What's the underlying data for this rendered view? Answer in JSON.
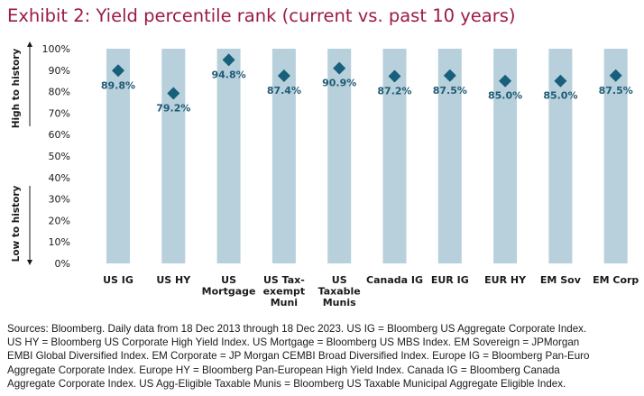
{
  "title": "Exhibit 2: Yield percentile rank (current vs. past 10 years)",
  "colors": {
    "title": "#9b1b42",
    "bar": "#b7d0dc",
    "marker": "#175f7a",
    "label": "#1f5a74"
  },
  "chart_data": {
    "type": "bar",
    "title": "Exhibit 2: Yield percentile rank (current vs. past 10 years)",
    "categories": [
      [
        "US IG"
      ],
      [
        "US HY"
      ],
      [
        "US",
        "Mortgage"
      ],
      [
        "US Tax-",
        "exempt",
        "Muni"
      ],
      [
        "US",
        "Taxable",
        "Munis"
      ],
      [
        "Canada IG"
      ],
      [
        "EUR IG"
      ],
      [
        "EUR HY"
      ],
      [
        "EM Sov"
      ],
      [
        "EM Corp"
      ]
    ],
    "series": [
      {
        "values": [
          100,
          100,
          100,
          100,
          100,
          100,
          100,
          100,
          100,
          100
        ]
      },
      {
        "values": [
          89.8,
          79.2,
          94.8,
          87.4,
          90.9,
          87.2,
          87.5,
          85.0,
          85.0,
          87.5
        ],
        "labels": [
          "89.8%",
          "79.2%",
          "94.8%",
          "87.4%",
          "90.9%",
          "87.2%",
          "87.5%",
          "85.0%",
          "85.0%",
          "87.5%"
        ]
      }
    ],
    "ylim": [
      0,
      100
    ],
    "yticks": [
      "0%",
      "10%",
      "20%",
      "30%",
      "40%",
      "50%",
      "60%",
      "70%",
      "80%",
      "90%",
      "100%"
    ],
    "annotations": {
      "high": "High to history",
      "low": "Low to history"
    },
    "grid": false,
    "legend": "none"
  },
  "notes": [
    "Sources: Bloomberg. Daily data from 18 Dec 2013 through 18 Dec 2023. US IG = Bloomberg US Aggregate Corporate Index.",
    "US HY = Bloomberg US Corporate High Yield Index. US Mortgage = Bloomberg US MBS Index. EM Sovereign = JPMorgan",
    "EMBI Global Diversified Index. EM Corporate = JP Morgan CEMBI Broad Diversified Index. Europe IG = Bloomberg Pan-Euro",
    "Aggregate Corporate Index. Europe HY = Bloomberg Pan-European High Yield Index. Canada IG = Bloomberg Canada",
    "Aggregate Corporate Index. US Agg-Eligible Taxable Munis = Bloomberg US Taxable Municipal Aggregate Eligible Index."
  ]
}
